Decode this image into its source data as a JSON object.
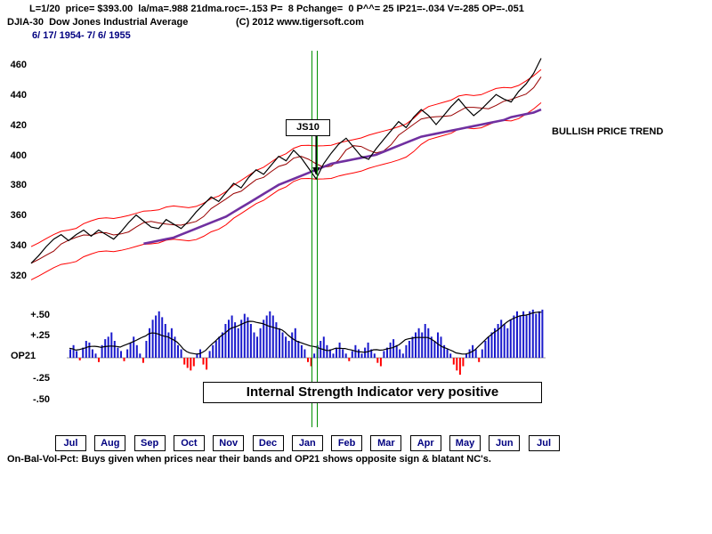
{
  "header": {
    "stats_line": "L=1/20  price= $393.00  la/ma=.988 21dma.roc=-.153 P=  8 Pchange=  0 P^^= 25 IP21=-.034 V=-285 OP=-.051",
    "symbol_title": "DJIA-30  Dow Jones Industrial Average",
    "copyright": "(C) 2012 www.tigersoft.com",
    "date_range": "6/ 17/ 1954- 7/ 6/ 1955"
  },
  "annotations": {
    "signal_label": "JS10",
    "trend_label": "BULLISH PRICE TREND",
    "indicator_note": "Internal Strength Indicator very positive"
  },
  "indicator": {
    "axis_label": "OP21"
  },
  "footer": {
    "note": "On-Bal-Vol-Pct: Buys given when prices near their bands and OP21 shows opposite sign & blatant NC's."
  },
  "chart_data": {
    "type": "line",
    "title": "DJIA-30 Dow Jones Industrial Average",
    "date_range": "6/17/1954 - 7/6/1955",
    "price_panel": {
      "yticks": [
        460,
        440,
        420,
        400,
        380,
        360,
        340,
        320
      ],
      "ylim": [
        315,
        470
      ],
      "grid": false,
      "series": [
        {
          "name": "DJIA-30 close",
          "color": "#000000",
          "values": [
            329,
            334,
            340,
            345,
            348,
            344,
            348,
            351,
            347,
            351,
            348,
            345,
            350,
            356,
            361,
            357,
            353,
            352,
            358,
            355,
            352,
            357,
            363,
            368,
            373,
            370,
            376,
            382,
            379,
            386,
            391,
            388,
            394,
            400,
            397,
            404,
            399,
            392,
            385,
            395,
            402,
            408,
            412,
            406,
            400,
            398,
            405,
            411,
            417,
            423,
            419,
            426,
            431,
            427,
            421,
            427,
            433,
            438,
            432,
            427,
            431,
            436,
            441,
            438,
            436,
            443,
            448,
            455,
            465
          ]
        },
        {
          "name": "65-day moving average",
          "color": "#7030a0",
          "start_index": 15,
          "values": [
            342,
            343,
            344,
            345,
            346,
            348,
            350,
            352,
            354,
            356,
            358,
            360,
            363,
            366,
            369,
            372,
            375,
            378,
            381,
            383,
            385,
            387,
            389,
            391,
            393,
            395,
            396,
            397,
            398,
            399,
            400,
            401,
            403,
            405,
            407,
            409,
            411,
            413,
            414,
            415,
            416,
            417,
            418,
            419,
            420,
            421,
            422,
            423,
            424,
            426,
            427,
            428,
            429,
            431
          ]
        }
      ],
      "bands": {
        "color": "#ff0000",
        "ma_color": "#990000",
        "offset": 11,
        "derived_from": "smoothed close"
      },
      "signal": {
        "label": "JS10",
        "index": 38,
        "price": 385
      }
    },
    "indicator_panel": {
      "name": "OP21",
      "type": "bar",
      "yticks": [
        0.5,
        0.25,
        -0.25,
        -0.5
      ],
      "ytick_labels": [
        "+.50",
        "+.25",
        "-.25",
        "-.50"
      ],
      "positive_color": "#1a1acc",
      "negative_color": "#ff0000",
      "ma_color": "#000000",
      "values": [
        0.1,
        0.15,
        0.08,
        -0.03,
        0.12,
        0.2,
        0.18,
        0.1,
        0.05,
        -0.05,
        0.15,
        0.22,
        0.25,
        0.3,
        0.2,
        0.12,
        0.08,
        -0.04,
        0.1,
        0.18,
        0.25,
        0.15,
        0.05,
        -0.06,
        0.2,
        0.35,
        0.45,
        0.5,
        0.55,
        0.48,
        0.4,
        0.3,
        0.35,
        0.25,
        0.15,
        0.1,
        -0.08,
        -0.12,
        -0.15,
        -0.1,
        0.05,
        0.1,
        -0.08,
        -0.14,
        0.08,
        0.15,
        0.2,
        0.25,
        0.3,
        0.4,
        0.45,
        0.5,
        0.42,
        0.35,
        0.45,
        0.52,
        0.48,
        0.4,
        0.3,
        0.25,
        0.35,
        0.45,
        0.5,
        0.55,
        0.5,
        0.42,
        0.35,
        0.3,
        0.25,
        0.2,
        0.3,
        0.35,
        0.2,
        0.15,
        0.1,
        -0.05,
        -0.1,
        0.05,
        0.15,
        0.2,
        0.25,
        0.15,
        0.1,
        0.05,
        0.12,
        0.18,
        0.1,
        0.05,
        -0.04,
        0.08,
        0.15,
        0.1,
        0.05,
        0.12,
        0.18,
        0.1,
        0.05,
        -0.06,
        -0.1,
        0.08,
        0.12,
        0.18,
        0.22,
        0.15,
        0.1,
        0.05,
        0.15,
        0.2,
        0.25,
        0.3,
        0.35,
        0.3,
        0.4,
        0.35,
        0.25,
        0.2,
        0.3,
        0.25,
        0.15,
        0.1,
        0.05,
        -0.08,
        -0.15,
        -0.2,
        -0.1,
        0.05,
        0.1,
        0.15,
        0.1,
        -0.05,
        0.1,
        0.2,
        0.25,
        0.3,
        0.35,
        0.4,
        0.45,
        0.4,
        0.35,
        0.45,
        0.5,
        0.55,
        0.5,
        0.55,
        0.5,
        0.55,
        0.57,
        0.52,
        0.55,
        0.57
      ]
    },
    "x_axis": {
      "months": [
        "Jul",
        "Aug",
        "Sep",
        "Oct",
        "Nov",
        "Dec",
        "Jan",
        "Feb",
        "Mar",
        "Apr",
        "May",
        "Jun",
        "Jul"
      ]
    },
    "event_lines": {
      "color": "#009000",
      "count": 2,
      "position": "mid-January"
    }
  }
}
